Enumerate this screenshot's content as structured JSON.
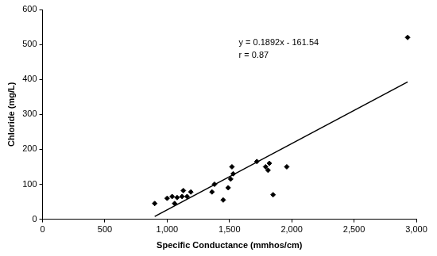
{
  "chart_data": {
    "type": "scatter",
    "x_label": "Specific Conductance (mmhos/cm)",
    "y_label": "Chloride (mg/L)",
    "annotations": [
      "y = 0.1892x - 161.54",
      "r = 0.87"
    ],
    "series": [
      {
        "type": "scatter",
        "color": "#000000",
        "marker": "diamond",
        "x": [
          900,
          1000,
          1040,
          1060,
          1080,
          1120,
          1130,
          1160,
          1190,
          1360,
          1380,
          1450,
          1490,
          1510,
          1520,
          1530,
          1720,
          1790,
          1810,
          1820,
          1850,
          1960,
          2930
        ],
        "values": [
          45,
          60,
          65,
          45,
          62,
          65,
          82,
          65,
          78,
          78,
          100,
          55,
          90,
          115,
          150,
          130,
          165,
          150,
          140,
          160,
          70,
          150,
          520
        ]
      },
      {
        "type": "line",
        "color": "#000000",
        "line_style": "solid",
        "x": [
          900,
          2930
        ],
        "values": [
          8,
          393
        ]
      }
    ],
    "xlim": [
      0,
      3000
    ],
    "xticks": [
      0,
      500,
      1000,
      1500,
      2000,
      2500,
      3000
    ],
    "ylim": [
      0,
      600
    ],
    "yticks": [
      0,
      100,
      200,
      300,
      400,
      500,
      600
    ],
    "grid": false
  }
}
